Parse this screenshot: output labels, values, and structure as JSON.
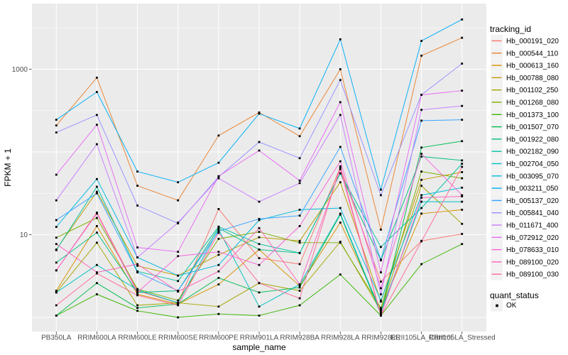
{
  "chart_data": {
    "type": "line",
    "title": "",
    "xlabel": "sample_name",
    "ylabel": "FPKM + 1",
    "y_scale": "log10",
    "y_axis_tick_labels": [
      "1000",
      "10"
    ],
    "y_axis_tick_values": [
      1000,
      10
    ],
    "y_major_gridlines": [
      1,
      10,
      100,
      1000
    ],
    "y_minor_gridlines": [
      3.162,
      31.62,
      316.2,
      3162
    ],
    "ylim_log": [
      0.67,
      6200
    ],
    "grid": "on",
    "legend_position": "right",
    "legend_title": "tracking_id",
    "quant_legend": {
      "title": "quant_status",
      "item_label": "OK"
    },
    "categories": [
      "PB350LA",
      "RRIM600LA",
      "RRIM600LE",
      "RRIM600SE",
      "RRIM600PE",
      "RRIM901LA",
      "RRIM928BA",
      "RRIM928LA",
      "RRIM928LE",
      "RRII105LA_Control",
      "RRII105LA_Stressed"
    ],
    "series": [
      {
        "name": "Hb_000191_020",
        "color": "#F8766D",
        "values": [
          3.7,
          18.5,
          2.1,
          1.5,
          20.4,
          5.2,
          4.4,
          65,
          2.7,
          8.4,
          10.2
        ]
      },
      {
        "name": "Hb_000544_110",
        "color": "#EA8331",
        "values": [
          209,
          790,
          39,
          26,
          158,
          300,
          155,
          1000,
          11.5,
          1460,
          2400
        ]
      },
      {
        "name": "Hb_000613_160",
        "color": "#D89000",
        "values": [
          2.1,
          12.7,
          1.9,
          1.45,
          2.5,
          6.6,
          2.4,
          14,
          1.25,
          18,
          20
        ]
      },
      {
        "name": "Hb_000788_080",
        "color": "#C09B00",
        "values": [
          6.6,
          33,
          4.2,
          3.2,
          5.7,
          9.3,
          8.4,
          43,
          1.55,
          46,
          57
        ]
      },
      {
        "name": "Hb_001102_250",
        "color": "#A3A500",
        "values": [
          2.0,
          8.0,
          1.4,
          1.5,
          1.35,
          2.6,
          2.1,
          8.2,
          1.2,
          39,
          13.5
        ]
      },
      {
        "name": "Hb_001268_080",
        "color": "#7CAE00",
        "values": [
          9.2,
          15.9,
          2.2,
          1.6,
          8.9,
          10.8,
          8.0,
          8.0,
          1.3,
          58,
          48
        ]
      },
      {
        "name": "Hb_001373_100",
        "color": "#39B600",
        "values": [
          1.05,
          1.9,
          1.2,
          1.0,
          1.1,
          1.05,
          1.4,
          3.3,
          1.05,
          4.4,
          7.7
        ]
      },
      {
        "name": "Hb_001507_070",
        "color": "#00BB4E",
        "values": [
          1.05,
          2.6,
          1.3,
          1.45,
          3.0,
          2.0,
          2.3,
          17.5,
          1.1,
          113,
          135
        ]
      },
      {
        "name": "Hb_001922_080",
        "color": "#00BF7D",
        "values": [
          4.6,
          10.6,
          2.0,
          2.1,
          12,
          6.6,
          6.0,
          55,
          4.9,
          88,
          79
        ]
      },
      {
        "name": "Hb_002182_090",
        "color": "#00C1A3",
        "values": [
          6.5,
          38,
          3.6,
          2.75,
          12.5,
          7.7,
          6.0,
          55,
          7.1,
          21,
          72
        ]
      },
      {
        "name": "Hb_002704_050",
        "color": "#00BFC4",
        "values": [
          2.0,
          4.3,
          2.15,
          1.5,
          11.5,
          1.35,
          2.5,
          18,
          1.15,
          25,
          25
        ]
      },
      {
        "name": "Hb_003095_070",
        "color": "#00BAE0",
        "values": [
          12.4,
          47,
          5.3,
          3.2,
          4.3,
          15,
          20,
          21,
          1.6,
          30,
          37
        ]
      },
      {
        "name": "Hb_003211_050",
        "color": "#00B0F6",
        "values": [
          245,
          530,
          58,
          43,
          74,
          290,
          192,
          2300,
          35,
          2200,
          4000
        ]
      },
      {
        "name": "Hb_005137_020",
        "color": "#35A2FF",
        "values": [
          15,
          31.6,
          3.5,
          2.1,
          11,
          15.5,
          17,
          115,
          5.0,
          239,
          245
        ]
      },
      {
        "name": "Hb_005841_040",
        "color": "#9590FF",
        "values": [
          172,
          280,
          22.5,
          13.7,
          50,
          132,
          84,
          740,
          30,
          490,
          1170
        ]
      },
      {
        "name": "Hb_011671_400",
        "color": "#C77CFF",
        "values": [
          26,
          124,
          5.3,
          14,
          48,
          25,
          42,
          280,
          1.9,
          323,
          360
        ]
      },
      {
        "name": "Hb_072912_020",
        "color": "#E76BF3",
        "values": [
          53,
          213,
          7.0,
          6.2,
          51,
          104,
          45,
          400,
          3.5,
          490,
          550
        ]
      },
      {
        "name": "Hb_078633_010",
        "color": "#FA62DB",
        "values": [
          3.7,
          18,
          2.0,
          5.5,
          6.2,
          4.3,
          12.7,
          77,
          2.25,
          95,
          30
        ]
      },
      {
        "name": "Hb_089100_020",
        "color": "#FF62BC",
        "values": [
          7.7,
          3.5,
          4.4,
          2.05,
          3.6,
          12,
          2.5,
          62,
          1.05,
          28,
          29
        ]
      },
      {
        "name": "Hb_089100_030",
        "color": "#FF6A98",
        "values": [
          1.4,
          3.4,
          1.85,
          1.4,
          10.5,
          2.6,
          1.7,
          67,
          1.05,
          8.3,
          66
        ]
      }
    ],
    "theme": {
      "panel_bg": "#EBEBEB",
      "grid_color": "#FFFFFF",
      "legend_key_bg": "#F2F2F2",
      "tick_text_color": "#4D4D4D",
      "axis_title_color": "#000000",
      "point_color": "#000000",
      "tick_mark_color": "#333333"
    }
  }
}
